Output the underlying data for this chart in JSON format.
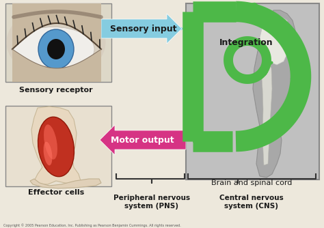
{
  "bg_color": "#ede8dc",
  "cns_box_color": "#b8b8b8",
  "sensory_arrow_color": "#85cce0",
  "motor_arrow_color": "#d63384",
  "integration_arrow_color": "#4db848",
  "text_color": "#1a1a1a",
  "label_sensory_receptor": "Sensory receptor",
  "label_effector_cells": "Effector cells",
  "label_sensory_input": "Sensory input",
  "label_motor_output": "Motor output",
  "label_integration": "Integration",
  "label_brain": "Brain and spinal cord",
  "label_pns": "Peripheral nervous\nsystem (PNS)",
  "label_cns": "Central nervous\nsystem (CNS)",
  "copyright": "Copyright © 2005 Pearson Education, Inc. Publishing as Pearson Benjamin Cummings. All rights reserved.",
  "figsize": [
    4.74,
    3.34
  ],
  "dpi": 100
}
